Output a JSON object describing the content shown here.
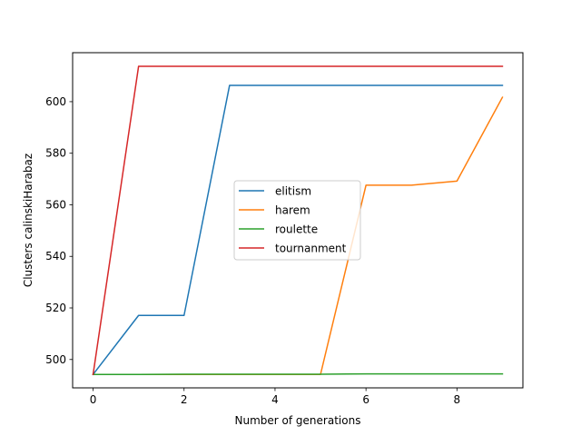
{
  "chart_data": {
    "type": "line",
    "title": "",
    "xlabel": "Number of generations",
    "ylabel": "Clusters calinskiHarabaz",
    "xlim": [
      -0.45,
      9.45
    ],
    "ylim": [
      489.0,
      619.0
    ],
    "xticks": [
      0,
      2,
      4,
      6,
      8
    ],
    "yticks": [
      500,
      520,
      540,
      560,
      580,
      600
    ],
    "grid": false,
    "legend_position": "center-right",
    "x": [
      0,
      1,
      2,
      3,
      4,
      5,
      6,
      7,
      8,
      9
    ],
    "series": [
      {
        "name": "elitism",
        "color": "#1f77b4",
        "values": [
          494.2,
          517.1,
          517.1,
          606.3,
          606.3,
          606.3,
          606.3,
          606.3,
          606.3,
          606.3
        ]
      },
      {
        "name": "harem",
        "color": "#ff7f0e",
        "values": [
          494.2,
          494.2,
          494.2,
          494.2,
          494.2,
          494.2,
          567.6,
          567.6,
          569.2,
          601.7
        ]
      },
      {
        "name": "roulette",
        "color": "#2ca02c",
        "values": [
          494.2,
          494.2,
          494.3,
          494.3,
          494.3,
          494.3,
          494.4,
          494.4,
          494.4,
          494.4
        ]
      },
      {
        "name": "tournanment",
        "color": "#d62728",
        "values": [
          494.2,
          613.7,
          613.7,
          613.7,
          613.7,
          613.7,
          613.7,
          613.7,
          613.7,
          613.7
        ]
      }
    ]
  }
}
